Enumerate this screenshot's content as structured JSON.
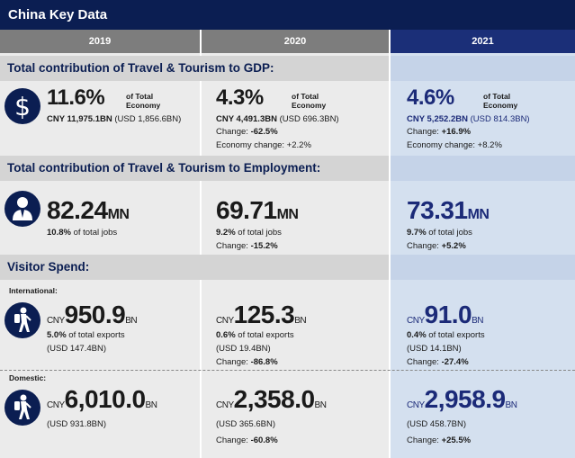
{
  "title": "China Key Data",
  "years": [
    "2019",
    "2020",
    "2021"
  ],
  "sections": {
    "gdp": "Total contribution of Travel & Tourism to GDP:",
    "employment": "Total contribution of Travel & Tourism to Employment:",
    "visitor": "Visitor Spend:"
  },
  "of_total_economy": [
    "of Total",
    "Economy"
  ],
  "gdp": [
    {
      "pct": "11.6%",
      "line1a": "CNY 11,975.1BN",
      "line1b": " (USD 1,856.6BN)"
    },
    {
      "pct": "4.3%",
      "line1a": "CNY 4,491.3BN",
      "line1b": " (USD 696.3BN)",
      "change_label": "Change: ",
      "change": "-62.5%",
      "econ": "Economy change: +2.2%"
    },
    {
      "pct": "4.6%",
      "line1a": "CNY 5,252.2BN",
      "line1b": " (USD 814.3BN)",
      "change_label": "Change: ",
      "change": "+16.9%",
      "econ": "Economy change: +8.2%"
    }
  ],
  "employment": [
    {
      "num": "82.24",
      "unit": "MN",
      "pct": "10.8%",
      "rest": " of total jobs"
    },
    {
      "num": "69.71",
      "unit": "MN",
      "pct": "9.2%",
      "rest": " of total jobs",
      "change_label": "Change: ",
      "change": "-15.2%"
    },
    {
      "num": "73.31",
      "unit": "MN",
      "pct": "9.7%",
      "rest": " of total jobs",
      "change_label": "Change: ",
      "change": "+5.2%"
    }
  ],
  "international_label": "International:",
  "domestic_label": "Domestic:",
  "currency_prefix": "CNY",
  "bn_suffix": "BN",
  "international": [
    {
      "num": "950.9",
      "pct": "5.0%",
      "rest": " of total exports",
      "usd": "(USD 147.4BN)"
    },
    {
      "num": "125.3",
      "pct": "0.6%",
      "rest": " of total exports",
      "usd": "(USD 19.4BN)",
      "change_label": "Change: ",
      "change": "-86.8%"
    },
    {
      "num": "91.0",
      "pct": "0.4%",
      "rest": " of total exports",
      "usd": "(USD 14.1BN)",
      "change_label": "Change: ",
      "change": "-27.4%"
    }
  ],
  "domestic": [
    {
      "num": "6,010.0",
      "usd": "(USD 931.8BN)"
    },
    {
      "num": "2,358.0",
      "usd": "(USD 365.6BN)",
      "change_label": "Change: ",
      "change": "-60.8%"
    },
    {
      "num": "2,958.9",
      "usd": "(USD 458.7BN)",
      "change_label": "Change: ",
      "change": "+25.5%"
    }
  ],
  "icons": {
    "gdp": "dollar-icon",
    "employment": "worker-icon",
    "international": "traveller-icon",
    "domestic": "traveller-icon"
  }
}
